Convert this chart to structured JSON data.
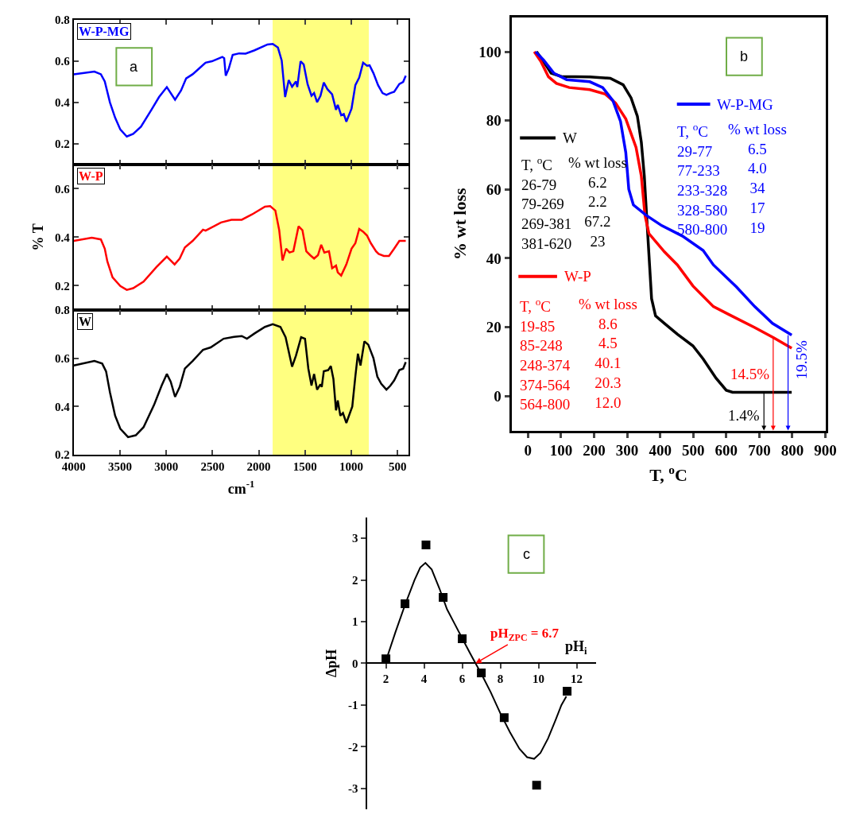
{
  "chart_data": [
    {
      "type": "line",
      "annotations": [
        "a"
      ],
      "xlim": [
        4000,
        380
      ],
      "xticks": [
        4000,
        3500,
        3000,
        2500,
        2000,
        1500,
        1000,
        500
      ],
      "ylim": [
        0.1,
        0.8
      ],
      "yticks": [
        0.2,
        0.4,
        0.6,
        0.8
      ],
      "tick_labels": "y",
      "bands": [
        {
          "axis": "x",
          "from": 1850,
          "to": 810,
          "color": "#ffff80"
        }
      ],
      "series": [
        {
          "name": "W-P-MG",
          "color": "#0000ff",
          "x": [
            4000,
            3777,
            3707,
            3665,
            3609,
            3553,
            3497,
            3427,
            3358,
            3274,
            3162,
            3078,
            2994,
            2905,
            2841,
            2785,
            2715,
            2575,
            2506,
            2394,
            2374,
            2357,
            2324,
            2282,
            2212,
            2142,
            2045,
            1905,
            1849,
            1793,
            1752,
            1715,
            1676,
            1640,
            1598,
            1584,
            1548,
            1514,
            1472,
            1430,
            1402,
            1369,
            1333,
            1297,
            1258,
            1207,
            1165,
            1146,
            1109,
            1081,
            1053,
            997,
            956,
            914,
            872,
            830,
            802,
            760,
            710,
            662,
            620,
            578,
            536,
            480,
            439,
            411
          ],
          "values": [
            0.536,
            0.549,
            0.536,
            0.501,
            0.4,
            0.326,
            0.269,
            0.235,
            0.248,
            0.282,
            0.363,
            0.426,
            0.474,
            0.413,
            0.457,
            0.516,
            0.536,
            0.592,
            0.599,
            0.62,
            0.614,
            0.529,
            0.564,
            0.63,
            0.637,
            0.636,
            0.652,
            0.68,
            0.683,
            0.665,
            0.602,
            0.426,
            0.508,
            0.476,
            0.501,
            0.474,
            0.599,
            0.583,
            0.488,
            0.432,
            0.445,
            0.401,
            0.432,
            0.496,
            0.464,
            0.439,
            0.364,
            0.388,
            0.338,
            0.344,
            0.307,
            0.37,
            0.483,
            0.52,
            0.592,
            0.577,
            0.579,
            0.541,
            0.483,
            0.445,
            0.436,
            0.445,
            0.451,
            0.489,
            0.499,
            0.529
          ]
        }
      ]
    },
    {
      "type": "line",
      "ylabel": "% T",
      "xlim": [
        4000,
        380
      ],
      "xticks": [
        4000,
        3500,
        3000,
        2500,
        2000,
        1500,
        1000,
        500
      ],
      "ylim": [
        0.1,
        0.7
      ],
      "yticks": [
        0.2,
        0.4,
        0.6
      ],
      "tick_labels": "y",
      "bands": [
        {
          "axis": "x",
          "from": 1850,
          "to": 810,
          "color": "#ffff80"
        }
      ],
      "series": [
        {
          "name": "W-P",
          "color": "#ff0000",
          "x": [
            4000,
            3805,
            3707,
            3665,
            3637,
            3581,
            3497,
            3427,
            3358,
            3246,
            3106,
            2994,
            2910,
            2855,
            2799,
            2715,
            2603,
            2575,
            2408,
            2296,
            2184,
            2073,
            1933,
            1877,
            1821,
            1779,
            1743,
            1704,
            1668,
            1626,
            1570,
            1528,
            1486,
            1444,
            1402,
            1360,
            1325,
            1291,
            1241,
            1207,
            1165,
            1146,
            1109,
            1053,
            997,
            956,
            914,
            872,
            830,
            788,
            732,
            704,
            648,
            592,
            536,
            480,
            411
          ],
          "values": [
            0.385,
            0.398,
            0.391,
            0.353,
            0.3,
            0.235,
            0.199,
            0.183,
            0.19,
            0.217,
            0.277,
            0.32,
            0.288,
            0.312,
            0.358,
            0.385,
            0.431,
            0.427,
            0.461,
            0.472,
            0.472,
            0.494,
            0.526,
            0.528,
            0.51,
            0.429,
            0.304,
            0.353,
            0.337,
            0.342,
            0.445,
            0.429,
            0.342,
            0.326,
            0.312,
            0.326,
            0.369,
            0.337,
            0.342,
            0.272,
            0.283,
            0.255,
            0.242,
            0.288,
            0.353,
            0.375,
            0.434,
            0.423,
            0.407,
            0.375,
            0.342,
            0.331,
            0.323,
            0.323,
            0.353,
            0.385,
            0.385
          ]
        }
      ]
    },
    {
      "type": "line",
      "xlabel": "cm$^{-1}$",
      "xlim": [
        4000,
        380
      ],
      "xticks": [
        4000,
        3500,
        3000,
        2500,
        2000,
        1500,
        1000,
        500
      ],
      "ylim": [
        0.2,
        0.8
      ],
      "yticks": [
        0.2,
        0.4,
        0.6,
        0.8
      ],
      "bands": [
        {
          "axis": "x",
          "from": 1850,
          "to": 810,
          "color": "#ffff80"
        }
      ],
      "series": [
        {
          "name": "W",
          "color": "#000000",
          "x": [
            4000,
            3777,
            3693,
            3651,
            3609,
            3553,
            3497,
            3413,
            3330,
            3246,
            3134,
            3050,
            2994,
            2952,
            2905,
            2855,
            2799,
            2715,
            2603,
            2520,
            2380,
            2268,
            2184,
            2128,
            2045,
            1933,
            1849,
            1766,
            1710,
            1640,
            1598,
            1542,
            1500,
            1464,
            1430,
            1402,
            1369,
            1333,
            1319,
            1297,
            1249,
            1221,
            1193,
            1165,
            1146,
            1118,
            1090,
            1053,
            989,
            956,
            928,
            900,
            858,
            816,
            760,
            718,
            676,
            620,
            578,
            536,
            480,
            439,
            411
          ],
          "values": [
            0.57,
            0.589,
            0.578,
            0.546,
            0.459,
            0.362,
            0.308,
            0.273,
            0.281,
            0.314,
            0.405,
            0.487,
            0.535,
            0.503,
            0.44,
            0.481,
            0.557,
            0.589,
            0.635,
            0.645,
            0.681,
            0.689,
            0.692,
            0.681,
            0.703,
            0.73,
            0.741,
            0.73,
            0.687,
            0.565,
            0.611,
            0.687,
            0.681,
            0.557,
            0.487,
            0.535,
            0.47,
            0.492,
            0.481,
            0.546,
            0.551,
            0.568,
            0.514,
            0.384,
            0.425,
            0.362,
            0.373,
            0.332,
            0.4,
            0.524,
            0.619,
            0.57,
            0.67,
            0.656,
            0.6,
            0.524,
            0.494,
            0.47,
            0.486,
            0.508,
            0.551,
            0.557,
            0.584
          ]
        }
      ]
    },
    {
      "type": "line",
      "xlabel": "T, $^{o}$C",
      "ylabel": "% wt loss",
      "legend": "top",
      "xlim": [
        -50,
        900
      ],
      "xticks": [
        0,
        100,
        200,
        300,
        400,
        500,
        600,
        700,
        800,
        900
      ],
      "ylim": [
        -10,
        110
      ],
      "yticks": [
        0,
        20,
        40,
        60,
        80,
        100
      ],
      "annotations": [
        "b",
        "T, $^{o}$C\n26-79\n79-269\n269-381\n381-620",
        "% wt loss\n6.2\n2.2\n67.2\n23",
        "T, $^{o}$C\n19-85\n85-248\n248-374\n374-564\n564-800",
        "% wt loss\n8.6\n4.5\n40.1\n20.3\n12.0",
        "T, $^{o}$C\n29-77\n77-233\n233-328\n328-580\n580-800",
        "% wt loss\n6.5\n4.0\n34\n17\n19",
        {
          "text": "1.4%",
          "x": 714,
          "y": 1.1
        },
        {
          "text": "14.5%",
          "x": 742,
          "y": 17
        },
        {
          "text": "19.5%",
          "x": 787,
          "y": 18
        }
      ],
      "series": [
        {
          "name": "W",
          "color": "#000000",
          "x": [
            26,
            47,
            70,
            101,
            187,
            249,
            288,
            312,
            331,
            343,
            352,
            358,
            366,
            374,
            386,
            413,
            452,
            499,
            530,
            569,
            600,
            619,
            798
          ],
          "values": [
            100,
            97.2,
            93.8,
            92.8,
            92.7,
            92.3,
            90.4,
            86.6,
            81.3,
            73.7,
            63.9,
            54.0,
            41.1,
            28.3,
            23.3,
            21.1,
            18.0,
            14.6,
            10.8,
            5.2,
            1.7,
            1.1,
            1.1
          ]
        },
        {
          "name": "W-P",
          "color": "#ff0000",
          "x": [
            19,
            39,
            62,
            86,
            125,
            187,
            234,
            265,
            296,
            327,
            343,
            354,
            366,
            413,
            452,
            499,
            561,
            608,
            686,
            744,
            798
          ],
          "values": [
            100,
            97.2,
            92.7,
            90.8,
            89.6,
            89.0,
            87.7,
            85.1,
            80.5,
            72.2,
            63.9,
            52.5,
            47.2,
            41.9,
            38.1,
            32.0,
            26.0,
            23.7,
            19.9,
            16.9,
            13.9
          ]
        },
        {
          "name": "W-P-MG",
          "color": "#0000ff",
          "x": [
            23,
            47,
            78,
            117,
            187,
            226,
            257,
            280,
            296,
            305,
            319,
            358,
            405,
            467,
            530,
            561,
            631,
            686,
            740,
            798
          ],
          "values": [
            100,
            97.6,
            93.8,
            91.9,
            91.3,
            89.6,
            85.8,
            79.8,
            70.7,
            60.1,
            55.5,
            52.5,
            49.5,
            46.5,
            42.3,
            38.1,
            31.7,
            26.0,
            21.1,
            17.7
          ]
        }
      ]
    },
    {
      "type": "scatter",
      "xlabel": "pH$_{i}$",
      "ylabel": "ΔpH",
      "marker": "square",
      "xlim": [
        1,
        13
      ],
      "xticks": [
        2,
        4,
        6,
        8,
        10,
        12
      ],
      "ylim": [
        -3.5,
        3.5
      ],
      "yticks": [
        -3,
        -2,
        -1,
        0,
        1,
        2,
        3
      ],
      "annotations": [
        "c",
        {
          "text": "pH$_{ZPC}$ = 6.7",
          "x": 6.7,
          "y": 0
        }
      ],
      "series": [
        {
          "color": "#000000",
          "x": [
            2,
            3,
            4.1,
            5,
            6,
            7,
            8.2,
            9.9,
            11.5
          ],
          "values": [
            0.11,
            1.43,
            2.84,
            1.58,
            0.59,
            -0.23,
            -1.3,
            -2.92,
            -0.67
          ]
        },
        {
          "type": "line",
          "marker": "none",
          "color": "#000000",
          "x": [
            2.1,
            2.5,
            3,
            3.5,
            3.8,
            4.07,
            4.4,
            4.8,
            5.2,
            5.6,
            6,
            6.4,
            6.7,
            7,
            7.5,
            8,
            8.5,
            9,
            9.4,
            9.77,
            10.1,
            10.5,
            10.9,
            11.2,
            11.46
          ],
          "values": [
            0.2,
            0.75,
            1.4,
            2.0,
            2.3,
            2.41,
            2.25,
            1.8,
            1.3,
            0.95,
            0.6,
            0.25,
            0,
            -0.25,
            -0.7,
            -1.2,
            -1.65,
            -2.05,
            -2.25,
            -2.29,
            -2.15,
            -1.8,
            -1.35,
            -1.0,
            -0.79
          ]
        }
      ]
    }
  ]
}
